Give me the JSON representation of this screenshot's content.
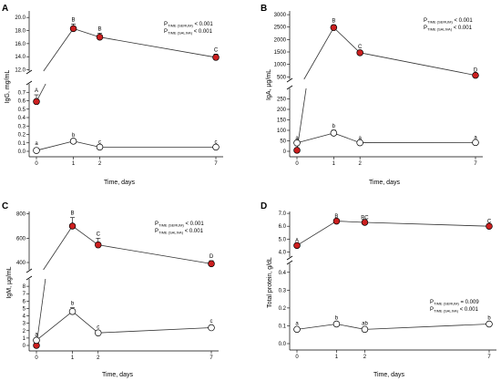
{
  "chart_data": [
    {
      "type": "line",
      "panel": "A",
      "xlabel": "Time, days",
      "ylabel": "IgG, mg/mL",
      "x": [
        0,
        1,
        2,
        7
      ],
      "x_ticks": [
        "0",
        "1",
        "2",
        "7"
      ],
      "y_broken": true,
      "upper": {
        "ylim": [
          11.8,
          21.0
        ],
        "ticks": [
          "12.0",
          "14.0",
          "16.0",
          "18.0",
          "20.0"
        ]
      },
      "lower": {
        "ylim": [
          0,
          0.8
        ],
        "ticks": [
          "0.0",
          "0.1",
          "0.2",
          "0.3",
          "0.4",
          "0.5",
          "0.6",
          "0.7"
        ]
      },
      "series": [
        {
          "role": "serum",
          "marker": "filled",
          "color": "#cc1f1f",
          "values": [
            0.59,
            18.3,
            17.0,
            13.9
          ],
          "errors": [
            0.08,
            0.7,
            0.6,
            0.5
          ],
          "labels": [
            "A",
            "B",
            "B",
            "C"
          ]
        },
        {
          "role": "saliva",
          "marker": "open",
          "color": "#ffffff",
          "values": [
            0.01,
            0.12,
            0.05,
            0.05
          ],
          "errors": [
            0,
            0.02,
            0.01,
            0.01
          ],
          "labels": [
            "a",
            "b",
            "c",
            "c"
          ]
        }
      ],
      "pvalues": [
        {
          "p": "P",
          "sub": "TIME (SERUM)",
          "rest": " < 0.001"
        },
        {
          "p": "P",
          "sub": "TIME (SALIVA)",
          "rest": " < 0.001"
        }
      ]
    },
    {
      "type": "line",
      "panel": "B",
      "xlabel": "Time, days",
      "ylabel": "IgA, µg/mL",
      "x": [
        0,
        1,
        2,
        7
      ],
      "x_ticks": [
        "0",
        "1",
        "2",
        "7"
      ],
      "y_broken": true,
      "upper": {
        "ylim": [
          400,
          3150
        ],
        "ticks": [
          "500",
          "1000",
          "1500",
          "2000",
          "2500",
          "3000"
        ]
      },
      "lower": {
        "ylim": [
          0,
          300
        ],
        "ticks": [
          "0",
          "50",
          "100",
          "150",
          "200",
          "250"
        ]
      },
      "series": [
        {
          "role": "serum",
          "marker": "filled",
          "color": "#cc1f1f",
          "values": [
            5,
            2480,
            1470,
            560
          ],
          "errors": [
            0,
            110,
            60,
            40
          ],
          "labels": [
            "A",
            "B",
            "C",
            "D"
          ]
        },
        {
          "role": "saliva",
          "marker": "open",
          "color": "#ffffff",
          "values": [
            40,
            87,
            41,
            42
          ],
          "errors": [
            4,
            14,
            3,
            3
          ],
          "labels": [
            "a",
            "b",
            "a",
            "a"
          ]
        }
      ],
      "pvalues": [
        {
          "p": "P",
          "sub": "TIME (SERUM)",
          "rest": " < 0.001"
        },
        {
          "p": "P",
          "sub": "TIME (SALIVA)",
          "rest": " < 0.001"
        }
      ]
    },
    {
      "type": "line",
      "panel": "C",
      "xlabel": "Time, days",
      "ylabel": "IgM, µg/mL",
      "x": [
        0,
        1,
        2,
        7
      ],
      "x_ticks": [
        "0",
        "1",
        "2",
        "7"
      ],
      "y_broken": true,
      "upper": {
        "ylim": [
          340,
          820
        ],
        "ticks": [
          "400",
          "600",
          "800"
        ]
      },
      "lower": {
        "ylim": [
          0,
          9
        ],
        "ticks": [
          "0",
          "1",
          "2",
          "3",
          "4",
          "5",
          "6",
          "7",
          "8"
        ]
      },
      "series": [
        {
          "role": "serum",
          "marker": "filled",
          "color": "#cc1f1f",
          "values": [
            0.0,
            700,
            545,
            390
          ],
          "errors": [
            0,
            70,
            55,
            25
          ],
          "labels": [
            "A",
            "B",
            "C",
            "D"
          ]
        },
        {
          "role": "saliva",
          "marker": "open",
          "color": "#ffffff",
          "values": [
            0.7,
            4.6,
            1.7,
            2.4
          ],
          "errors": [
            0.2,
            0.5,
            0.2,
            0.3
          ],
          "labels": [
            "a",
            "b",
            "c",
            "c"
          ]
        }
      ],
      "pvalues": [
        {
          "p": "P",
          "sub": "TIME (SERUM)",
          "rest": " < 0.001"
        },
        {
          "p": "P",
          "sub": "TIME (SALIVA)",
          "rest": " < 0.001"
        }
      ]
    },
    {
      "type": "line",
      "panel": "D",
      "xlabel": "Time, days",
      "ylabel": "Total protein, g/dL",
      "x": [
        0,
        1,
        2,
        7
      ],
      "x_ticks": [
        "0",
        "1",
        "2",
        "7"
      ],
      "y_broken": true,
      "upper": {
        "ylim": [
          3.6,
          7.15
        ],
        "ticks": [
          "4.0",
          "5.0",
          "6.0",
          "7.0"
        ]
      },
      "lower": {
        "ylim": [
          0,
          0.45
        ],
        "ticks": [
          "0.0",
          "0.1",
          "0.2",
          "0.3",
          "0.4"
        ]
      },
      "series": [
        {
          "role": "serum",
          "marker": "filled",
          "color": "#cc1f1f",
          "values": [
            4.5,
            6.4,
            6.3,
            6.0
          ],
          "errors": [
            0.05,
            0.05,
            0.04,
            0.04
          ],
          "labels": [
            "A",
            "B",
            "BC",
            "C"
          ]
        },
        {
          "role": "saliva",
          "marker": "open",
          "color": "#ffffff",
          "values": [
            0.08,
            0.11,
            0.08,
            0.11
          ],
          "errors": [
            0.01,
            0.01,
            0.01,
            0.01
          ],
          "labels": [
            "a",
            "b",
            "ab",
            "b"
          ]
        }
      ],
      "pvalues": [
        {
          "p": "P",
          "sub": "TIME (SERUM)",
          "rest": " = 0.009"
        },
        {
          "p": "P",
          "sub": "TIME (SALIVA)",
          "rest": " < 0.001"
        }
      ]
    }
  ]
}
